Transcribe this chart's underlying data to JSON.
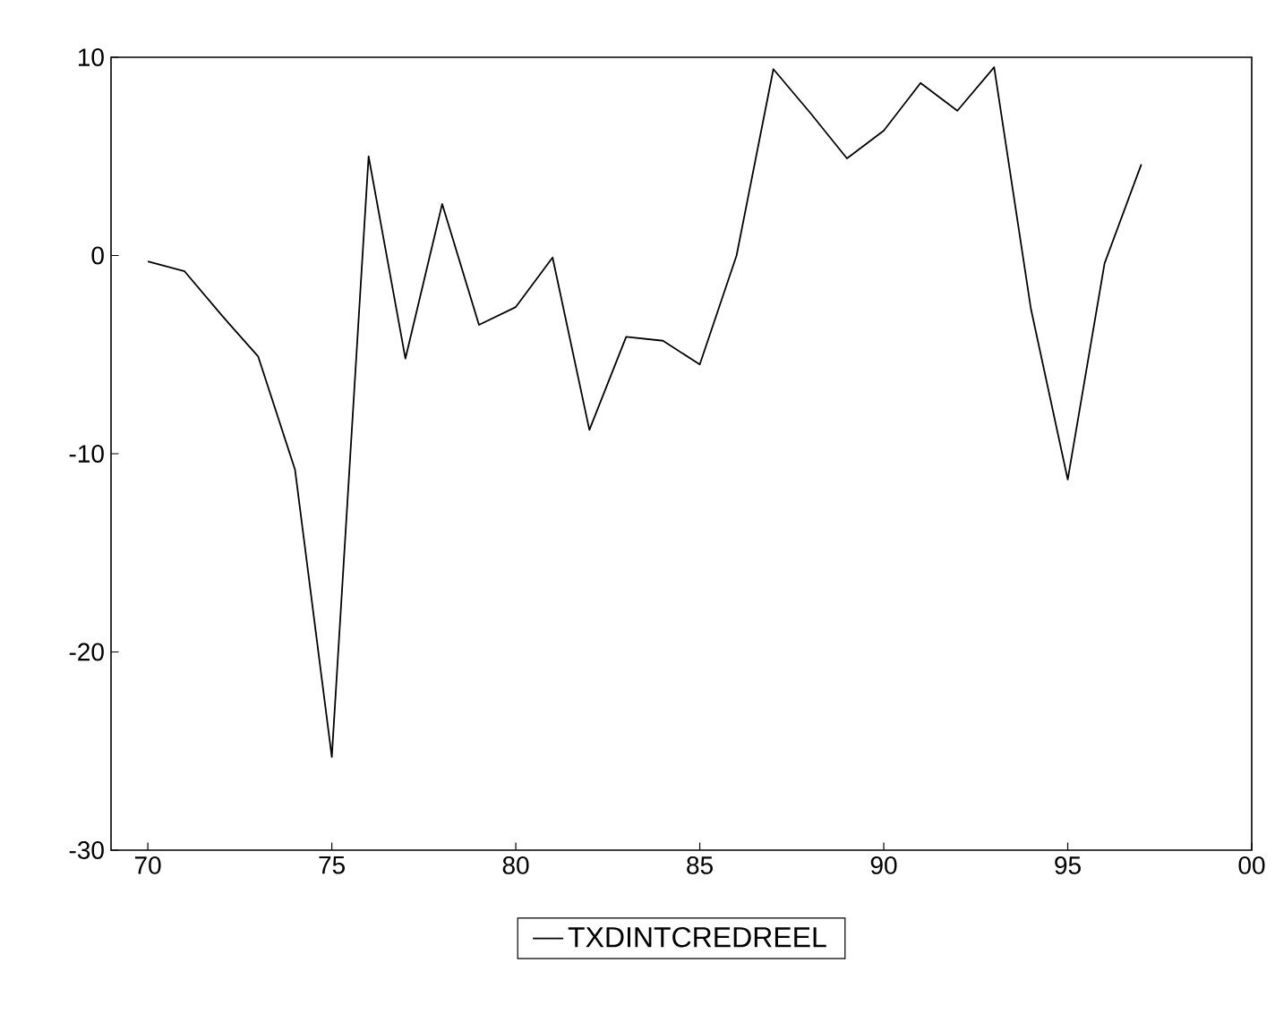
{
  "chart_data": {
    "type": "line",
    "x": [
      "1970",
      "1971",
      "1972",
      "1973",
      "1974",
      "1975",
      "1976",
      "1977",
      "1978",
      "1979",
      "1980",
      "1981",
      "1982",
      "1983",
      "1984",
      "1985",
      "1986",
      "1987",
      "1988",
      "1989",
      "1990",
      "1991",
      "1992",
      "1993",
      "1994",
      "1995",
      "1996",
      "1997"
    ],
    "series": [
      {
        "name": "TXDINTCREDREEL",
        "color": "#000000",
        "values": [
          -0.3,
          -0.8,
          -3.0,
          -5.1,
          -10.8,
          -25.3,
          5.0,
          -5.2,
          2.6,
          -3.5,
          -2.6,
          -0.1,
          -8.8,
          -4.1,
          -4.3,
          -5.5,
          0.0,
          9.4,
          7.2,
          4.9,
          6.3,
          8.7,
          7.3,
          9.5,
          -2.7,
          -11.3,
          -0.4,
          4.6
        ]
      }
    ],
    "xlim": [
      "1969",
      "2000"
    ],
    "ylim": [
      -30,
      10
    ],
    "xticks": [
      {
        "value": "1970",
        "label": "70"
      },
      {
        "value": "1975",
        "label": "75"
      },
      {
        "value": "1980",
        "label": "80"
      },
      {
        "value": "1985",
        "label": "85"
      },
      {
        "value": "1990",
        "label": "90"
      },
      {
        "value": "1995",
        "label": "95"
      },
      {
        "value": "2000",
        "label": "00"
      }
    ],
    "yticks": [
      -30,
      -20,
      -10,
      0,
      10
    ],
    "grid": false,
    "legend": "bottom",
    "marker": "none",
    "line_style": "solid"
  }
}
